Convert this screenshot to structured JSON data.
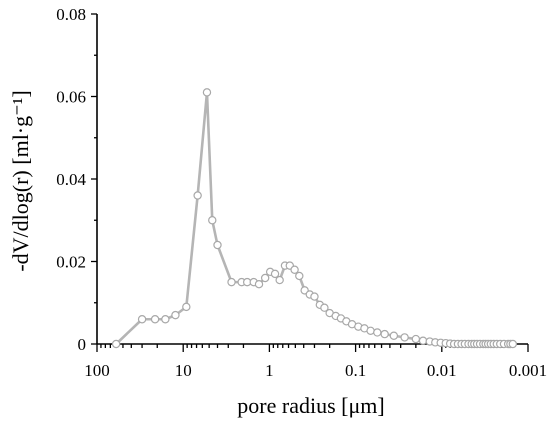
{
  "chart_data": {
    "type": "line",
    "title": "",
    "xlabel": "pore radius [μm]",
    "ylabel": "-dV/dlog(r) [ml·g⁻¹]",
    "x_scale": "log",
    "x_reversed": true,
    "xlim": [
      100,
      0.001
    ],
    "ylim": [
      0,
      0.08
    ],
    "x_ticks": [
      "100",
      "10",
      "1",
      "0.1",
      "0.01",
      "0.001"
    ],
    "y_ticks": [
      "0",
      "0.02",
      "0.04",
      "0.06",
      "0.08"
    ],
    "grid": false,
    "legend": "none",
    "series_color": "#b5b5b5",
    "marker": "open-circle",
    "series": [
      {
        "x": [
          60,
          30,
          21.2,
          16.1,
          12.3,
          9.2,
          6.8,
          5.3,
          4.6,
          4.0,
          2.75,
          2.1,
          1.81,
          1.52,
          1.32,
          1.12,
          0.98,
          0.86,
          0.76,
          0.66,
          0.58,
          0.51,
          0.45,
          0.39,
          0.34,
          0.3,
          0.26,
          0.23,
          0.2,
          0.17,
          0.148,
          0.128,
          0.11,
          0.093,
          0.079,
          0.067,
          0.056,
          0.046,
          0.036,
          0.027,
          0.02,
          0.0165,
          0.0138,
          0.0119,
          0.0103,
          0.009,
          0.008,
          0.0072,
          0.0065,
          0.0059,
          0.0054,
          0.0049,
          0.0045,
          0.0042,
          0.0039,
          0.0036,
          0.0033,
          0.0031,
          0.0029,
          0.0027,
          0.0025,
          0.0023,
          0.0021,
          0.0019,
          0.0017,
          0.0016,
          0.0015
        ],
        "y": [
          0,
          0.006,
          0.006,
          0.006,
          0.007,
          0.009,
          0.036,
          0.061,
          0.03,
          0.024,
          0.015,
          0.015,
          0.015,
          0.015,
          0.0145,
          0.016,
          0.0175,
          0.017,
          0.0155,
          0.019,
          0.019,
          0.018,
          0.0165,
          0.013,
          0.012,
          0.0115,
          0.0095,
          0.0088,
          0.0075,
          0.0068,
          0.0062,
          0.0055,
          0.0048,
          0.0042,
          0.0038,
          0.0032,
          0.0028,
          0.0024,
          0.002,
          0.0016,
          0.0012,
          0.0008,
          0.0006,
          0.0004,
          0.0003,
          0.0002,
          0.0001,
          0,
          0,
          0,
          0,
          0,
          0,
          0,
          0,
          0,
          0,
          0,
          0,
          0,
          0,
          0,
          0,
          0,
          0,
          0,
          0
        ]
      }
    ]
  }
}
